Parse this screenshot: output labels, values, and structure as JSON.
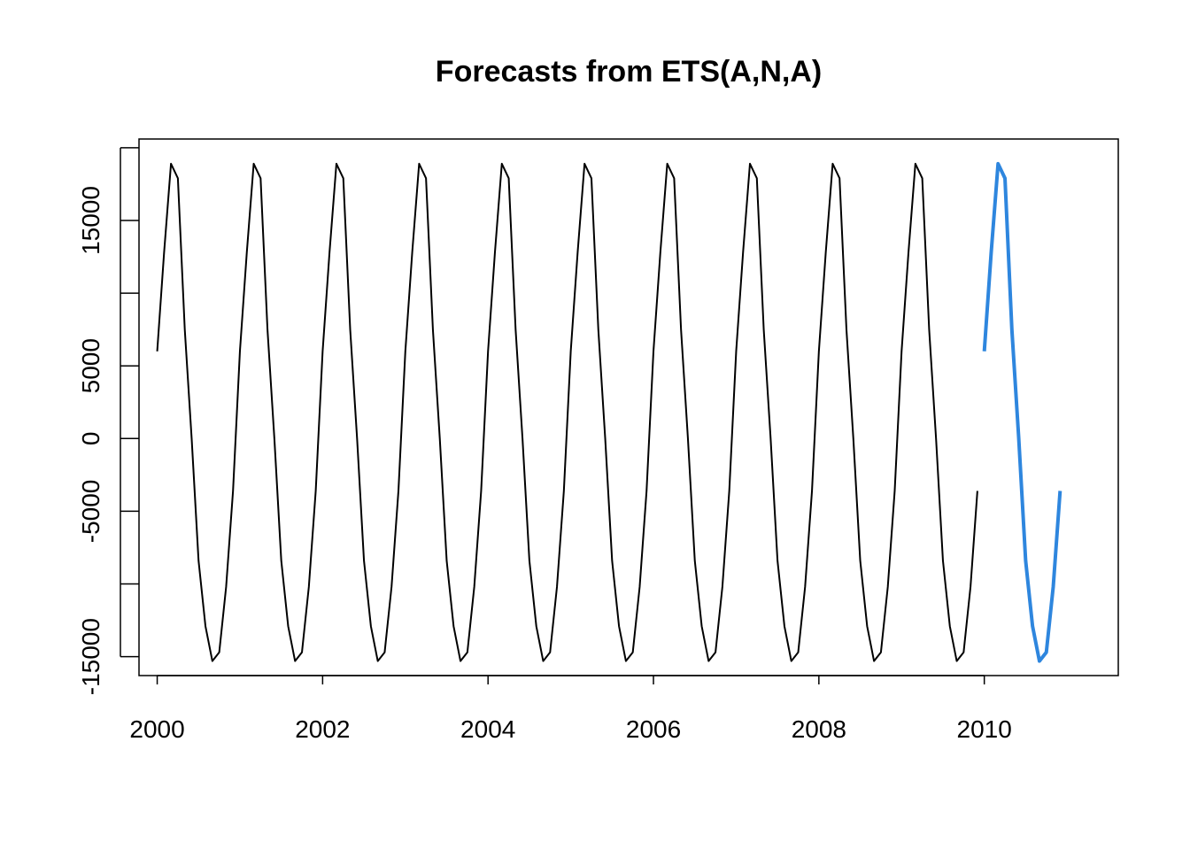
{
  "chart_data": {
    "type": "line",
    "title": "Forecasts from ETS(A,N,A)",
    "xlabel": "",
    "ylabel": "",
    "xlim": [
      1999.78,
      2011.62
    ],
    "ylim": [
      -16300,
      20600
    ],
    "x_ticks": [
      2000,
      2002,
      2004,
      2006,
      2008,
      2010
    ],
    "x_tick_labels": [
      "2000",
      "2002",
      "2004",
      "2006",
      "2008",
      "2010"
    ],
    "y_ticks": [
      -15000,
      -10000,
      -5000,
      0,
      5000,
      10000,
      15000,
      20000
    ],
    "y_tick_labels": [
      "-15000",
      "",
      "-5000",
      "0",
      "5000",
      "",
      "15000",
      ""
    ],
    "grid": false,
    "legend": "none",
    "colors": {
      "history": "#000000",
      "forecast": "#2E86DE",
      "axis": "#000000"
    },
    "seasonal_pattern": [
      6000,
      12800,
      18900,
      17900,
      7500,
      0,
      -8400,
      -12900,
      -15300,
      -14700,
      -10200,
      -3600
    ],
    "series": [
      {
        "role": "history",
        "start": 2000,
        "frequency": 12,
        "years": 10
      },
      {
        "role": "forecast",
        "start": 2010,
        "frequency": 12,
        "years": 1
      }
    ]
  }
}
